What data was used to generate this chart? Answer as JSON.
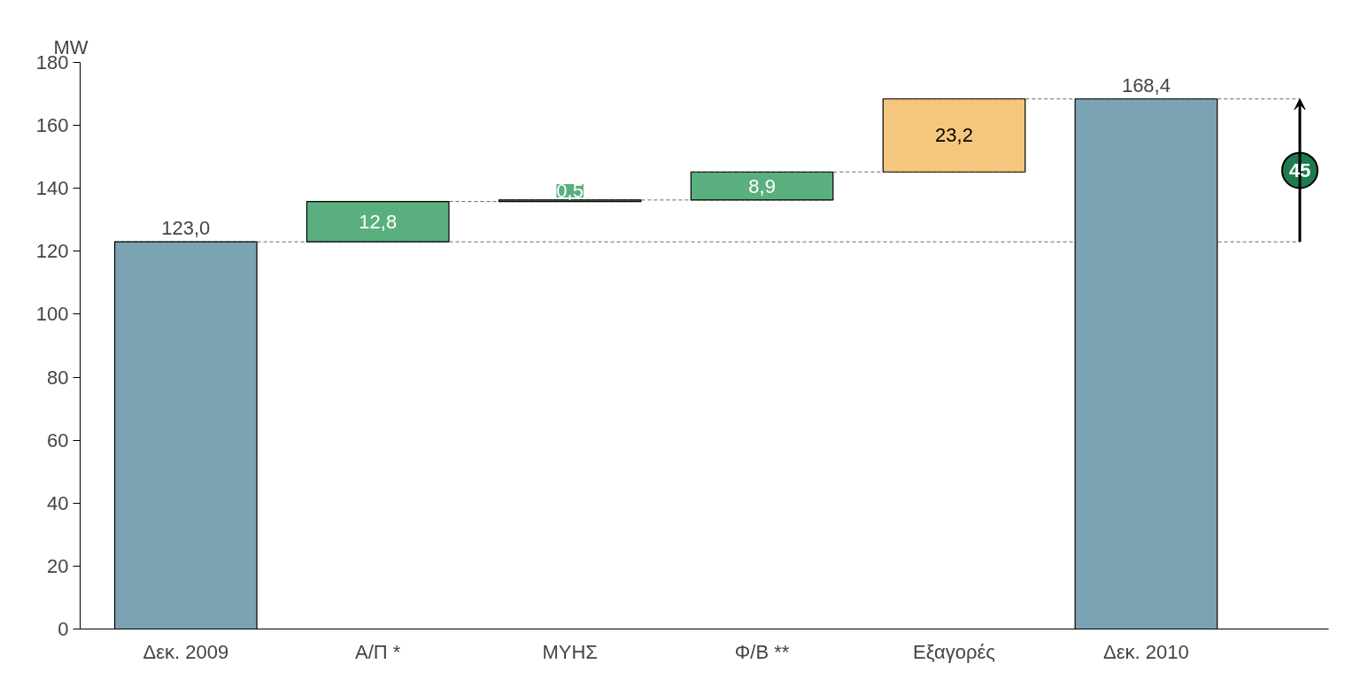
{
  "chart_data": {
    "type": "bar",
    "ylabel": "MW",
    "categories": [
      "Δεκ. 2009",
      "Α/Π *",
      "ΜΥΗΣ",
      "Φ/Β **",
      "Εξαγορές",
      "Δεκ. 2010"
    ],
    "values": [
      123.0,
      12.8,
      0.5,
      8.9,
      23.2,
      168.4
    ],
    "base": [
      0,
      123.0,
      135.8,
      136.3,
      145.2,
      0
    ],
    "colors": [
      "#7aa3b3",
      "#5aaf7f",
      "#5aaf7f",
      "#5aaf7f",
      "#f5c77e",
      "#7aa3b3"
    ],
    "value_labels": [
      "123,0",
      "12,8",
      "0,5",
      "8,9",
      "23,2",
      "168,4"
    ],
    "annotations": [
      "45"
    ],
    "ylim": [
      0,
      180
    ],
    "yticks": [
      0,
      20,
      40,
      60,
      80,
      100,
      120,
      140,
      160,
      180
    ],
    "ref_lines": [
      {
        "axis": "y",
        "value": 123.0,
        "color": "#666666",
        "line_style": "dashed"
      },
      {
        "axis": "y",
        "value": 135.8,
        "color": "#666666",
        "line_style": "dashed"
      },
      {
        "axis": "y",
        "value": 136.3,
        "color": "#666666",
        "line_style": "dashed"
      },
      {
        "axis": "y",
        "value": 145.2,
        "color": "#666666",
        "line_style": "dashed"
      },
      {
        "axis": "y",
        "value": 168.4,
        "color": "#666666",
        "line_style": "dashed"
      }
    ],
    "grid": false
  }
}
